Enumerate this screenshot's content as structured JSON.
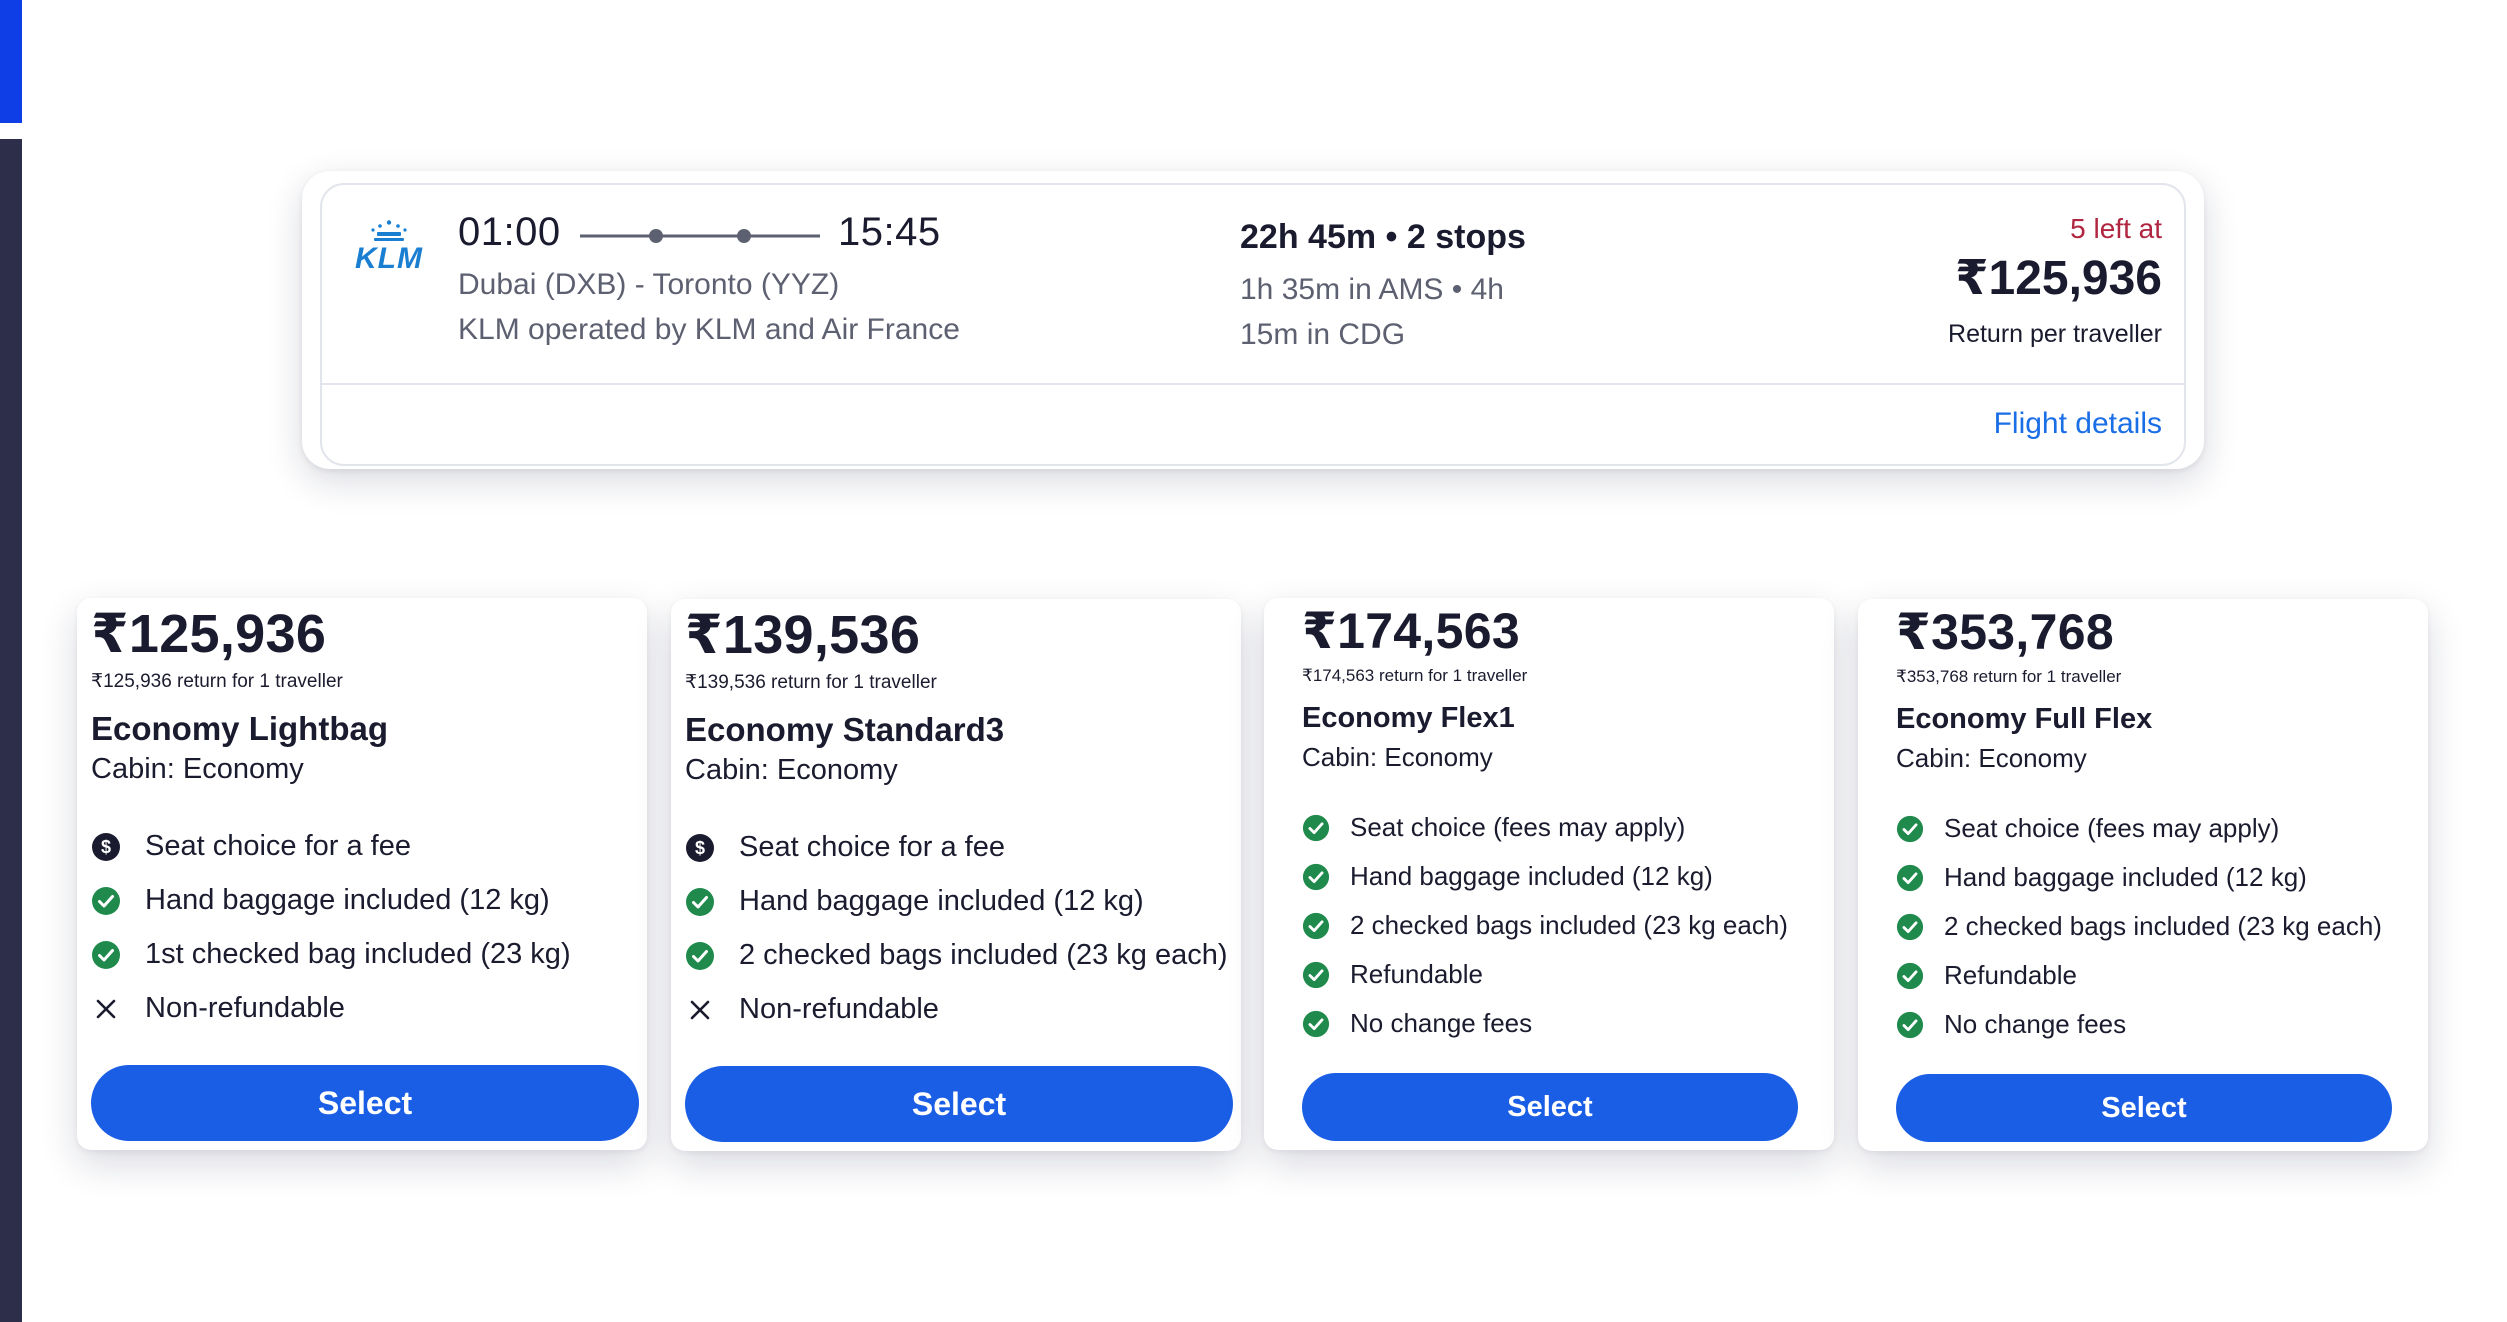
{
  "flight": {
    "airline": "KLM",
    "departure_time": "01:00",
    "arrival_time": "15:45",
    "route": "Dubai (DXB) - Toronto (YYZ)",
    "operator": "KLM operated by KLM and Air France",
    "duration_stops": "22h 45m • 2 stops",
    "layover_line1": "1h 35m in AMS • 4h",
    "layover_line2": "15m in CDG",
    "seats_left": "5 left at",
    "price": "₹125,936",
    "price_note": "Return per traveller",
    "details_link": "Flight details"
  },
  "fares": [
    {
      "price": "₹125,936",
      "sub": "₹125,936 return for 1 traveller",
      "name": "Economy Lightbag",
      "cabin": "Cabin: Economy",
      "features": [
        {
          "icon": "dollar-icon",
          "text": "Seat choice for a fee"
        },
        {
          "icon": "check-icon",
          "text": "Hand baggage included (12 kg)"
        },
        {
          "icon": "check-icon",
          "text": "1st checked bag included (23 kg)"
        },
        {
          "icon": "cross-icon",
          "text": "Non-refundable"
        }
      ],
      "button": "Select"
    },
    {
      "price": "₹139,536",
      "sub": "₹139,536 return for 1 traveller",
      "name": "Economy Standard3",
      "cabin": "Cabin: Economy",
      "features": [
        {
          "icon": "dollar-icon",
          "text": "Seat choice for a fee"
        },
        {
          "icon": "check-icon",
          "text": "Hand baggage included (12 kg)"
        },
        {
          "icon": "check-icon",
          "text": "2 checked bags included (23 kg each)"
        },
        {
          "icon": "cross-icon",
          "text": "Non-refundable"
        }
      ],
      "button": "Select"
    },
    {
      "price": "₹174,563",
      "sub": "₹174,563 return for 1 traveller",
      "name": "Economy Flex1",
      "cabin": "Cabin: Economy",
      "features": [
        {
          "icon": "check-icon",
          "text": "Seat choice (fees may apply)"
        },
        {
          "icon": "check-icon",
          "text": "Hand baggage included (12 kg)"
        },
        {
          "icon": "check-icon",
          "text": "2 checked bags included (23 kg each)"
        },
        {
          "icon": "check-icon",
          "text": "Refundable"
        },
        {
          "icon": "check-icon",
          "text": "No change fees"
        }
      ],
      "button": "Select"
    },
    {
      "price": "₹353,768",
      "sub": "₹353,768 return for 1 traveller",
      "name": "Economy Full Flex",
      "cabin": "Cabin: Economy",
      "features": [
        {
          "icon": "check-icon",
          "text": "Seat choice (fees may apply)"
        },
        {
          "icon": "check-icon",
          "text": "Hand baggage included (12 kg)"
        },
        {
          "icon": "check-icon",
          "text": "2 checked bags included (23 kg each)"
        },
        {
          "icon": "check-icon",
          "text": "Refundable"
        },
        {
          "icon": "check-icon",
          "text": "No change fees"
        }
      ],
      "button": "Select"
    }
  ],
  "colors": {
    "accent_blue": "#1a5ee6",
    "link_blue": "#1a6ee6",
    "check_green": "#1f8a4c",
    "urgent_red": "#b0253f",
    "rail_navy": "#2d2f4a"
  }
}
